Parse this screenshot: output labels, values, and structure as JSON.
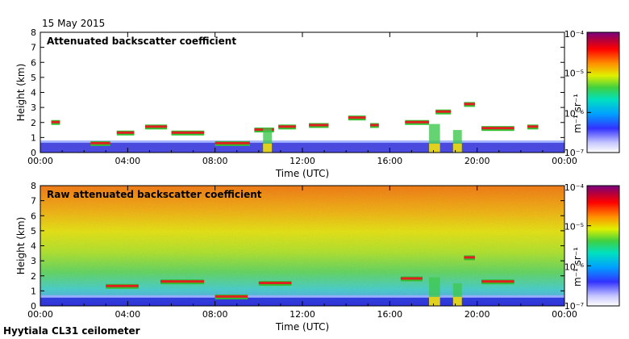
{
  "header": {
    "date": "15 May 2015"
  },
  "footer": {
    "site": "Hyytiala CL31 ceilometer"
  },
  "chart_data": [
    {
      "type": "heatmap",
      "title": "Attenuated backscatter coefficient",
      "xlabel": "Time (UTC)",
      "ylabel": "Height (km)",
      "x_ticks": [
        "00:00",
        "04:00",
        "08:00",
        "12:00",
        "16:00",
        "20:00",
        "00:00"
      ],
      "y_ticks": [
        "0",
        "1",
        "2",
        "3",
        "4",
        "5",
        "6",
        "7",
        "8"
      ],
      "xlim_hours": [
        0,
        24
      ],
      "ylim_km": [
        0,
        8
      ],
      "colorbar": {
        "label": "m⁻¹ sr⁻¹",
        "scale": "log",
        "ticks": [
          "10⁻⁴",
          "10⁻⁵",
          "10⁻⁶",
          "10⁻⁷"
        ]
      },
      "features": [
        {
          "kind": "boundary_layer",
          "t_start": 0,
          "t_end": 24,
          "top_km": 0.7
        },
        {
          "kind": "cloud_layer",
          "t_start": 0.5,
          "t_end": 0.9,
          "height_km": 2.0
        },
        {
          "kind": "cloud_layer",
          "t_start": 2.3,
          "t_end": 3.2,
          "height_km": 0.6
        },
        {
          "kind": "cloud_layer",
          "t_start": 3.5,
          "t_end": 4.3,
          "height_km": 1.3
        },
        {
          "kind": "cloud_layer",
          "t_start": 4.8,
          "t_end": 5.8,
          "height_km": 1.7
        },
        {
          "kind": "cloud_layer",
          "t_start": 6.0,
          "t_end": 7.5,
          "height_km": 1.3
        },
        {
          "kind": "cloud_layer",
          "t_start": 8.0,
          "t_end": 9.6,
          "height_km": 0.6
        },
        {
          "kind": "cloud_layer",
          "t_start": 9.8,
          "t_end": 10.7,
          "height_km": 1.5
        },
        {
          "kind": "cloud_layer",
          "t_start": 10.9,
          "t_end": 11.7,
          "height_km": 1.7
        },
        {
          "kind": "cloud_layer",
          "t_start": 12.3,
          "t_end": 13.2,
          "height_km": 1.8
        },
        {
          "kind": "cloud_layer",
          "t_start": 14.1,
          "t_end": 14.9,
          "height_km": 2.3
        },
        {
          "kind": "cloud_layer",
          "t_start": 15.1,
          "t_end": 15.5,
          "height_km": 1.8
        },
        {
          "kind": "cloud_layer",
          "t_start": 16.7,
          "t_end": 17.8,
          "height_km": 2.0
        },
        {
          "kind": "cloud_layer",
          "t_start": 18.1,
          "t_end": 18.8,
          "height_km": 2.7
        },
        {
          "kind": "cloud_layer",
          "t_start": 19.4,
          "t_end": 19.9,
          "height_km": 3.2
        },
        {
          "kind": "cloud_layer",
          "t_start": 20.2,
          "t_end": 21.7,
          "height_km": 1.6
        },
        {
          "kind": "cloud_layer",
          "t_start": 22.3,
          "t_end": 22.8,
          "height_km": 1.7
        },
        {
          "kind": "precipitation",
          "t_start": 10.2,
          "t_end": 10.6,
          "top_km": 1.6
        },
        {
          "kind": "precipitation",
          "t_start": 17.8,
          "t_end": 18.3,
          "top_km": 1.9
        },
        {
          "kind": "precipitation",
          "t_start": 18.9,
          "t_end": 19.3,
          "top_km": 1.5
        }
      ]
    },
    {
      "type": "heatmap",
      "title": "Raw attenuated backscatter coefficient",
      "xlabel": "Time (UTC)",
      "ylabel": "Height (km)",
      "x_ticks": [
        "00:00",
        "04:00",
        "08:00",
        "12:00",
        "16:00",
        "20:00",
        "00:00"
      ],
      "y_ticks": [
        "0",
        "1",
        "2",
        "3",
        "4",
        "5",
        "6",
        "7",
        "8"
      ],
      "xlim_hours": [
        0,
        24
      ],
      "ylim_km": [
        0,
        8
      ],
      "colorbar": {
        "label": "m⁻¹ sr⁻¹",
        "scale": "log",
        "ticks": [
          "10⁻⁴",
          "10⁻⁵",
          "10⁻⁶",
          "10⁻⁷"
        ]
      },
      "features": [
        {
          "kind": "noise_background",
          "t_start": 0,
          "t_end": 24
        },
        {
          "kind": "boundary_layer",
          "t_start": 0,
          "t_end": 24,
          "top_km": 0.6
        },
        {
          "kind": "cloud_layer",
          "t_start": 3.0,
          "t_end": 4.5,
          "height_km": 1.3
        },
        {
          "kind": "cloud_layer",
          "t_start": 5.5,
          "t_end": 7.5,
          "height_km": 1.6
        },
        {
          "kind": "cloud_layer",
          "t_start": 8.0,
          "t_end": 9.5,
          "height_km": 0.6
        },
        {
          "kind": "cloud_layer",
          "t_start": 10.0,
          "t_end": 11.5,
          "height_km": 1.5
        },
        {
          "kind": "cloud_layer",
          "t_start": 16.5,
          "t_end": 17.5,
          "height_km": 1.8
        },
        {
          "kind": "cloud_layer",
          "t_start": 19.4,
          "t_end": 19.9,
          "height_km": 3.2
        },
        {
          "kind": "cloud_layer",
          "t_start": 20.2,
          "t_end": 21.7,
          "height_km": 1.6
        },
        {
          "kind": "precipitation",
          "t_start": 17.8,
          "t_end": 18.3,
          "top_km": 1.9
        },
        {
          "kind": "precipitation",
          "t_start": 18.9,
          "t_end": 19.3,
          "top_km": 1.5
        }
      ]
    }
  ]
}
